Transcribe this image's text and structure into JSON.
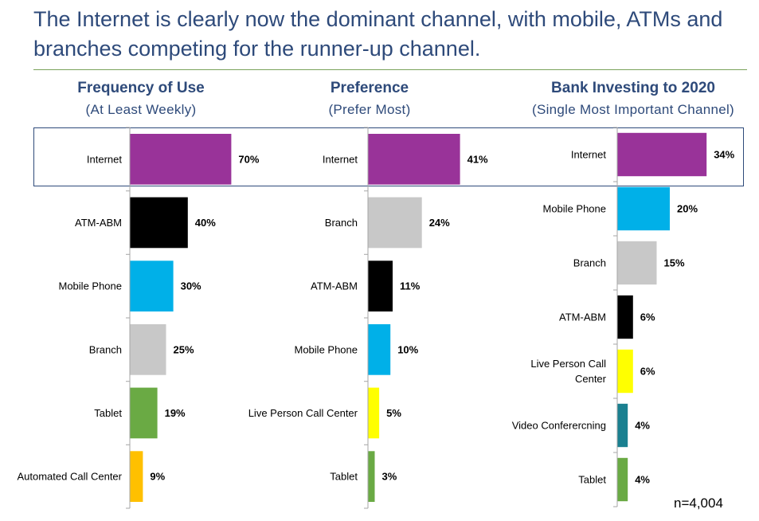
{
  "headline": "The Internet is clearly now the dominant channel, with mobile, ATMs and branches competing for the runner-up channel.",
  "sample_size": "n=4,004",
  "colors": {
    "heading": "#2e4a7a",
    "rule": "#7aa35a",
    "Internet": "#993399",
    "ATM-ABM": "#000000",
    "Mobile Phone": "#00b0e8",
    "Branch": "#c8c8c8",
    "Tablet": "#6aaa44",
    "Automated Call Center": "#ffc000",
    "Live Person Call Center": "#ffff00",
    "Video Conferercning": "#1a8090"
  },
  "chart_data": [
    {
      "type": "bar",
      "orientation": "horizontal",
      "title": "Frequency of Use",
      "subtitle": "(At Least Weekly)",
      "categories": [
        "Internet",
        "ATM-ABM",
        "Mobile Phone",
        "Branch",
        "Tablet",
        "Automated Call Center"
      ],
      "values": [
        70,
        40,
        30,
        25,
        19,
        9
      ],
      "labels": [
        "70%",
        "40%",
        "30%",
        "25%",
        "19%",
        "9%"
      ],
      "unit": "%"
    },
    {
      "type": "bar",
      "orientation": "horizontal",
      "title": "Preference",
      "subtitle": "(Prefer Most)",
      "categories": [
        "Internet",
        "Branch",
        "ATM-ABM",
        "Mobile Phone",
        "Live Person Call Center",
        "Tablet"
      ],
      "values": [
        41,
        24,
        11,
        10,
        5,
        3
      ],
      "labels": [
        "41%",
        "24%",
        "11%",
        "10%",
        "5%",
        "3%"
      ],
      "unit": "%"
    },
    {
      "type": "bar",
      "orientation": "horizontal",
      "title": "Bank Investing to 2020",
      "subtitle": "(Single Most Important Channel)",
      "categories": [
        "Internet",
        "Mobile Phone",
        "Branch",
        "ATM-ABM",
        "Live Person Call Center",
        "Video Conferercning",
        "Tablet"
      ],
      "values": [
        34,
        20,
        15,
        6,
        6,
        4,
        4
      ],
      "labels": [
        "34%",
        "20%",
        "15%",
        "6%",
        "6%",
        "4%",
        "4%"
      ],
      "unit": "%"
    }
  ]
}
